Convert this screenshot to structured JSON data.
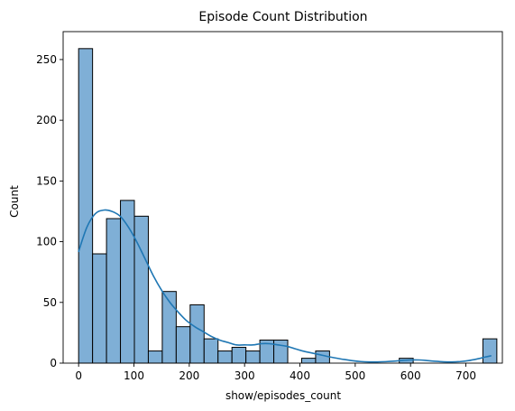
{
  "chart_data": {
    "type": "bar",
    "title": "Episode Count Distribution",
    "xlabel": "show/episodes_count",
    "ylabel": "Count",
    "xlim": [
      -28,
      766
    ],
    "ylim": [
      0,
      273
    ],
    "x_ticks": [
      0,
      100,
      200,
      300,
      400,
      500,
      600,
      700
    ],
    "y_ticks": [
      0,
      50,
      100,
      150,
      200,
      250
    ],
    "bin_edges": [
      0,
      25.2,
      50.4,
      75.6,
      100.8,
      126,
      151.2,
      176.4,
      201.6,
      226.8,
      252,
      277.2,
      302.4,
      327.6,
      352.8,
      378,
      403.2,
      428.4,
      453.6,
      478.8,
      504,
      529.2,
      554.4,
      579.6,
      604.8,
      630,
      655.2,
      680.4,
      705.6,
      730.8,
      756
    ],
    "values": [
      259,
      90,
      119,
      134,
      121,
      10,
      59,
      30,
      48,
      20,
      10,
      13,
      10,
      19,
      19,
      0,
      4,
      10,
      0,
      0,
      0,
      0,
      0,
      4,
      0,
      0,
      0,
      0,
      0,
      20
    ],
    "kde": {
      "x": [
        0,
        15,
        30,
        45,
        60,
        75,
        90,
        105,
        120,
        135,
        150,
        165,
        180,
        195,
        210,
        225,
        240,
        255,
        270,
        285,
        300,
        315,
        330,
        345,
        360,
        375,
        390,
        405,
        420,
        435,
        450,
        465,
        480,
        495,
        510,
        525,
        540,
        555,
        570,
        585,
        600,
        615,
        630,
        645,
        660,
        675,
        690,
        705,
        720,
        735,
        745
      ],
      "y": [
        92,
        112,
        123,
        126,
        125,
        121,
        112,
        100,
        86,
        72,
        60,
        50,
        42,
        35,
        30,
        26,
        22,
        19,
        17,
        15,
        15,
        15,
        16,
        16,
        15,
        14,
        12,
        10,
        8.5,
        7,
        5.5,
        4.2,
        3,
        2,
        1.3,
        1,
        1,
        1.2,
        1.6,
        2.2,
        2.6,
        2.6,
        2.1,
        1.5,
        1.1,
        1,
        1.3,
        2.1,
        3.4,
        5,
        6
      ]
    },
    "bar_color": "#7fafd6",
    "edge_color": "#000000",
    "line_color": "#1f77b4",
    "grid": false
  }
}
